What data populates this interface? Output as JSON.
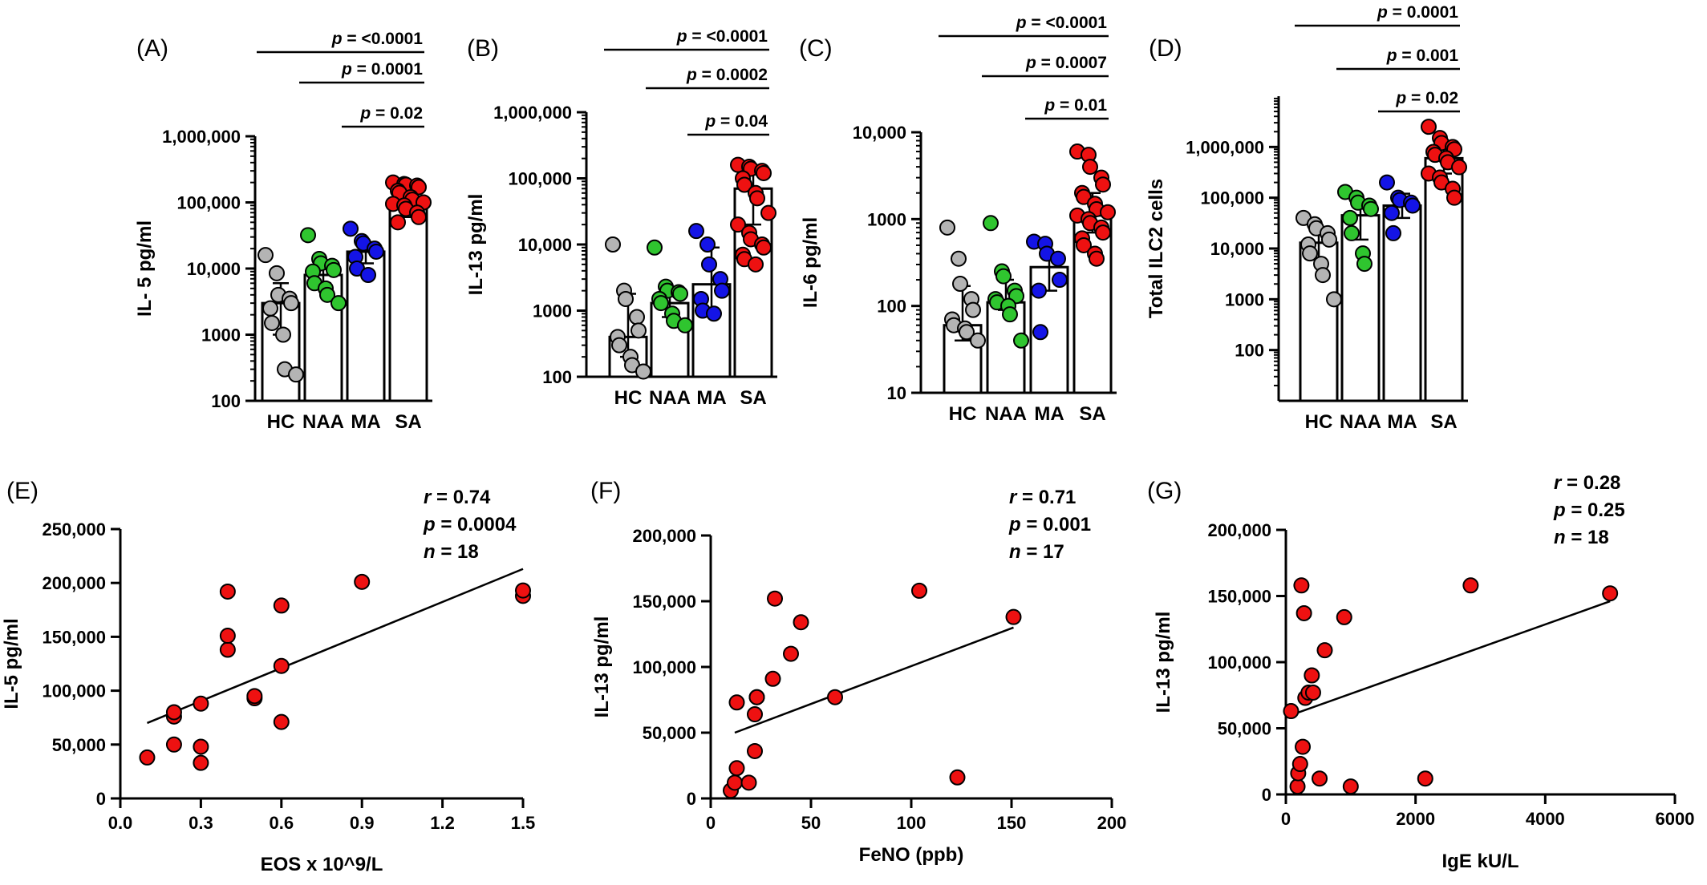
{
  "colors": {
    "HC": "#b4b4b4",
    "NAA": "#2fc52f",
    "MA": "#1414e6",
    "SA": "#ee1111"
  },
  "chart_data": [
    {
      "panel_label": "(A)",
      "type": "bar",
      "scale": "log",
      "ylabel": "IL- 5 pg/ml",
      "categories": [
        "HC",
        "NAA",
        "MA",
        "SA"
      ],
      "ylim": [
        100,
        1000000
      ],
      "yticks": [
        100,
        1000,
        10000,
        100000,
        1000000
      ],
      "ytick_labels": [
        "100",
        "1000",
        "10,000",
        "100,000",
        "1,000,000"
      ],
      "bars": [
        3000,
        8000,
        18000,
        90000
      ],
      "errors": [
        [
          1000,
          6000
        ],
        [
          6000,
          13000
        ],
        [
          12000,
          25000
        ],
        [
          60000,
          150000
        ]
      ],
      "points": [
        [
          16000,
          8500,
          4000,
          3500,
          3000,
          2500,
          1500,
          1000,
          300,
          250
        ],
        [
          32000,
          14000,
          12000,
          11000,
          9500,
          9000,
          6000,
          5000,
          4000,
          3000
        ],
        [
          40000,
          26000,
          24000,
          20000,
          18000,
          15000,
          10000,
          8000
        ],
        [
          200000,
          190000,
          185000,
          180000,
          170000,
          150000,
          140000,
          120000,
          110000,
          100000,
          95000,
          90000,
          80000,
          70000,
          60000,
          50000
        ]
      ],
      "sig": [
        {
          "from": "HC",
          "to": "SA",
          "label": "<0.0001"
        },
        {
          "from": "NAA",
          "to": "SA",
          "label": "0.0001"
        },
        {
          "from": "MA",
          "to": "SA",
          "label": "0.02"
        }
      ]
    },
    {
      "panel_label": "(B)",
      "type": "bar",
      "scale": "log",
      "ylabel": "IL-13 pg/ml",
      "categories": [
        "HC",
        "NAA",
        "MA",
        "SA"
      ],
      "ylim": [
        100,
        1000000
      ],
      "yticks": [
        100,
        1000,
        10000,
        100000,
        1000000
      ],
      "ytick_labels": [
        "100",
        "1000",
        "10,000",
        "100,000",
        "1,000,000"
      ],
      "bars": [
        400,
        1300,
        2500,
        70000
      ],
      "errors": [
        [
          200,
          1800
        ],
        [
          800,
          1900
        ],
        [
          1000,
          9000
        ],
        [
          20000,
          150000
        ]
      ],
      "points": [
        [
          10000,
          2000,
          1500,
          800,
          500,
          400,
          300,
          200,
          150,
          120
        ],
        [
          9000,
          2300,
          2000,
          1900,
          1800,
          1500,
          1300,
          900,
          700,
          600
        ],
        [
          16000,
          10000,
          5000,
          3000,
          2000,
          1500,
          1000,
          900
        ],
        [
          160000,
          150000,
          140000,
          130000,
          120000,
          100000,
          80000,
          60000,
          50000,
          30000,
          20000,
          15000,
          12000,
          10000,
          9000,
          7000,
          6000,
          5000
        ]
      ],
      "sig": [
        {
          "from": "HC",
          "to": "SA",
          "label": "<0.0001"
        },
        {
          "from": "NAA",
          "to": "SA",
          "label": "0.0002"
        },
        {
          "from": "MA",
          "to": "SA",
          "label": "0.04"
        }
      ]
    },
    {
      "panel_label": "(C)",
      "type": "bar",
      "scale": "log",
      "ylabel": "IL-6 pg/ml",
      "categories": [
        "HC",
        "NAA",
        "MA",
        "SA"
      ],
      "ylim": [
        10,
        10000
      ],
      "yticks": [
        10,
        100,
        1000,
        10000
      ],
      "ytick_labels": [
        "10",
        "100",
        "1000",
        "10,000"
      ],
      "bars": [
        60,
        110,
        280,
        1100
      ],
      "errors": [
        [
          40,
          170
        ],
        [
          90,
          200
        ],
        [
          150,
          400
        ],
        [
          700,
          2000
        ]
      ],
      "points": [
        [
          800,
          350,
          180,
          120,
          90,
          70,
          60,
          55,
          50,
          40
        ],
        [
          900,
          250,
          220,
          150,
          130,
          120,
          110,
          100,
          80,
          40
        ],
        [
          550,
          520,
          400,
          350,
          200,
          150,
          50
        ],
        [
          6000,
          5500,
          4000,
          3000,
          2500,
          2000,
          1800,
          1500,
          1300,
          1200,
          1100,
          1000,
          900,
          800,
          700,
          600,
          500,
          400,
          350
        ]
      ],
      "sig": [
        {
          "from": "HC",
          "to": "SA",
          "label": "<0.0001"
        },
        {
          "from": "NAA",
          "to": "SA",
          "label": "0.0007"
        },
        {
          "from": "MA",
          "to": "SA",
          "label": "0.01"
        }
      ]
    },
    {
      "panel_label": "(D)",
      "type": "bar",
      "scale": "log",
      "ylabel": "Total  ILC2 cells",
      "categories": [
        "HC",
        "NAA",
        "MA",
        "SA"
      ],
      "ylim": [
        10,
        10000000
      ],
      "yticks": [
        100,
        1000,
        10000,
        100000,
        1000000
      ],
      "ytick_labels": [
        "100",
        "1000",
        "10,000",
        "100,000",
        "1,000,000"
      ],
      "bars": [
        13000,
        45000,
        70000,
        600000
      ],
      "errors": [
        [
          6000,
          25000
        ],
        [
          15000,
          90000
        ],
        [
          40000,
          120000
        ],
        [
          300000,
          1200000
        ]
      ],
      "points": [
        [
          40000,
          30000,
          25000,
          20000,
          15000,
          12000,
          8000,
          5000,
          3000,
          1000
        ],
        [
          130000,
          100000,
          80000,
          70000,
          60000,
          40000,
          20000,
          8000,
          5000
        ],
        [
          200000,
          100000,
          90000,
          80000,
          70000,
          50000,
          20000
        ],
        [
          2500000,
          1500000,
          1200000,
          1000000,
          900000,
          800000,
          700000,
          600000,
          500000,
          400000,
          300000,
          250000,
          200000,
          150000,
          100000
        ]
      ],
      "sig": [
        {
          "from": "HC",
          "to": "SA",
          "label": "0.0001"
        },
        {
          "from": "NAA",
          "to": "SA",
          "label": "0.001"
        },
        {
          "from": "MA",
          "to": "SA",
          "label": "0.02"
        }
      ]
    },
    {
      "panel_label": "(E)",
      "type": "scatter",
      "xlabel": "EOS x 10^9/L",
      "ylabel": "IL-5 pg/ml",
      "xlim": [
        0,
        1.5
      ],
      "ylim": [
        0,
        250000
      ],
      "xticks": [
        0,
        0.3,
        0.6,
        0.9,
        1.2,
        1.5
      ],
      "xtick_labels": [
        "0.0",
        "0.3",
        "0.6",
        "0.9",
        "1.2",
        "1.5"
      ],
      "yticks": [
        0,
        50000,
        100000,
        150000,
        200000,
        250000
      ],
      "ytick_labels": [
        "0",
        "50,000",
        "100,000",
        "150,000",
        "200,000",
        "250,000"
      ],
      "x": [
        0.1,
        0.2,
        0.2,
        0.2,
        0.3,
        0.3,
        0.3,
        0.4,
        0.4,
        0.4,
        0.5,
        0.5,
        0.6,
        0.6,
        0.6,
        0.9,
        1.5,
        1.5
      ],
      "y": [
        38000,
        50000,
        76000,
        80000,
        33000,
        48000,
        88000,
        138000,
        151000,
        192000,
        93000,
        95000,
        71000,
        123000,
        179000,
        201000,
        188000,
        193000
      ],
      "fit": {
        "x": [
          0.1,
          1.5
        ],
        "y": [
          70000,
          213000
        ]
      },
      "stats": {
        "r": "0.74",
        "p": "0.0004",
        "n": "18"
      }
    },
    {
      "panel_label": "(F)",
      "type": "scatter",
      "xlabel": "FeNO (ppb)",
      "ylabel": "IL-13 pg/ml",
      "xlim": [
        0,
        200
      ],
      "ylim": [
        0,
        200000
      ],
      "xticks": [
        0,
        50,
        100,
        150,
        200
      ],
      "xtick_labels": [
        "0",
        "50",
        "100",
        "150",
        "200"
      ],
      "yticks": [
        0,
        50000,
        100000,
        150000,
        200000
      ],
      "ytick_labels": [
        "0",
        "50,000",
        "100,000",
        "150,000",
        "200,000"
      ],
      "x": [
        10,
        12,
        13,
        13,
        19,
        22,
        22,
        23,
        23,
        31,
        32,
        40,
        45,
        62,
        104,
        123,
        151
      ],
      "y": [
        6000,
        12000,
        23000,
        73000,
        12000,
        36000,
        64000,
        77000,
        77000,
        91000,
        152000,
        110000,
        134000,
        77000,
        158000,
        16000,
        138000
      ],
      "fit": {
        "x": [
          12,
          151
        ],
        "y": [
          50000,
          130000
        ]
      },
      "stats": {
        "r": "0.71",
        "p": "0.001",
        "n": "17"
      }
    },
    {
      "panel_label": "(G)",
      "type": "scatter",
      "xlabel": "IgE kU/L",
      "ylabel": "IL-13 pg/ml",
      "xlim": [
        0,
        6000
      ],
      "ylim": [
        0,
        200000
      ],
      "xticks": [
        0,
        2000,
        4000,
        6000
      ],
      "xtick_labels": [
        "0",
        "2000",
        "4000",
        "6000"
      ],
      "yticks": [
        0,
        50000,
        100000,
        150000,
        200000
      ],
      "ytick_labels": [
        "0",
        "50,000",
        "100,000",
        "150,000",
        "200,000"
      ],
      "x": [
        80,
        180,
        190,
        220,
        240,
        260,
        280,
        300,
        350,
        400,
        420,
        520,
        600,
        900,
        1000,
        2150,
        2850,
        5000
      ],
      "y": [
        63000,
        6000,
        16000,
        23000,
        158000,
        36000,
        137000,
        73000,
        77000,
        90000,
        77000,
        12000,
        109000,
        134000,
        6000,
        12000,
        158000,
        152000
      ],
      "fit": {
        "x": [
          80,
          5000
        ],
        "y": [
          60000,
          146000
        ]
      },
      "stats": {
        "r": "0.28",
        "p": "0.25",
        "n": "18"
      }
    }
  ]
}
